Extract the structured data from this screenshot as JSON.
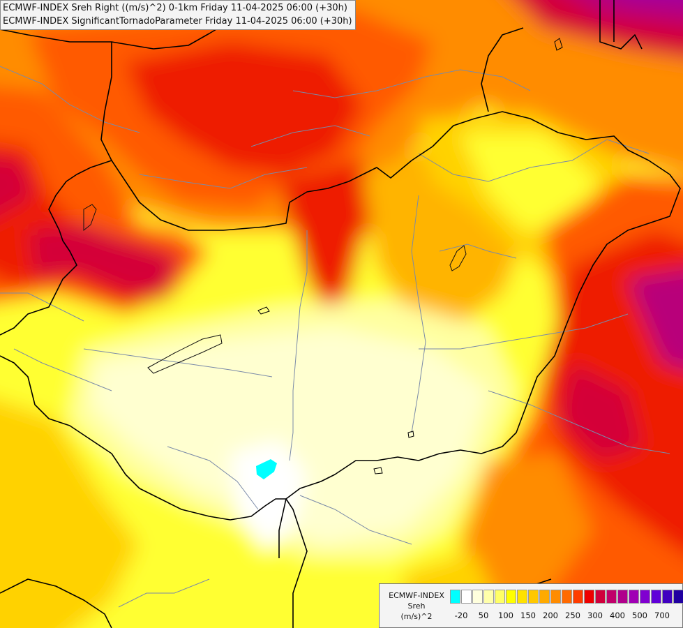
{
  "titles": {
    "line1": "ECMWF-INDEX Sreh Right ((m/s)^2) 0-1km Friday 11-04-2025 06:00 (+30h)",
    "line2": "ECMWF-INDEX SignificantTornadoParameter Friday 11-04-2025 06:00 (+30h)"
  },
  "legend": {
    "source": "ECMWF-INDEX",
    "field": "Sreh",
    "unit": "(m/s)^2",
    "colors": [
      "#00ffff",
      "#ffffff",
      "#ffffdd",
      "#ffffaa",
      "#ffff66",
      "#ffff00",
      "#ffe100",
      "#ffc800",
      "#ffaa00",
      "#ff8c00",
      "#ff6a00",
      "#ff3c00",
      "#ee0000",
      "#d0003c",
      "#c0006a",
      "#b0008c",
      "#a000b4",
      "#8000d0",
      "#6000d8",
      "#4000c0",
      "#2000a0",
      "#000080"
    ],
    "ticks": [
      "-20",
      "50",
      "100",
      "150",
      "200",
      "250",
      "300",
      "400",
      "500",
      "700"
    ]
  },
  "palette": {
    "very_light": "#ffffd0",
    "pale": "#ffffa0",
    "yellow": "#ffff30",
    "gold": "#ffd200",
    "orange_light": "#ffb400",
    "orange": "#ff8c00",
    "red_orange": "#ff5a00",
    "red": "#ee1a00",
    "crimson": "#d40038",
    "magenta": "#b8007a",
    "purple": "#a000a0",
    "cyan": "#00ffff"
  }
}
